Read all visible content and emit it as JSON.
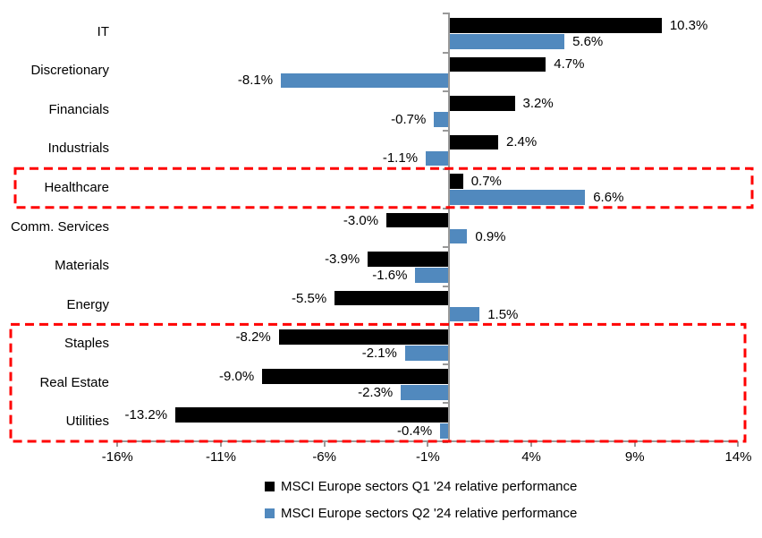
{
  "chart_data": {
    "type": "bar",
    "orientation": "horizontal",
    "title": "",
    "categories": [
      "IT",
      "Discretionary",
      "Financials",
      "Industrials",
      "Healthcare",
      "Comm. Services",
      "Materials",
      "Energy",
      "Staples",
      "Real Estate",
      "Utilities"
    ],
    "series": [
      {
        "name": "MSCI Europe sectors Q1 '24 relative performance",
        "color": "#000000",
        "values": [
          10.3,
          4.7,
          3.2,
          2.4,
          0.7,
          -3.0,
          -3.9,
          -5.5,
          -8.2,
          -9.0,
          -13.2
        ],
        "labels": [
          "10.3%",
          "4.7%",
          "3.2%",
          "2.4%",
          "0.7%",
          "-3.0%",
          "-3.9%",
          "-5.5%",
          "-8.2%",
          "-9.0%",
          "-13.2%"
        ]
      },
      {
        "name": "MSCI Europe sectors Q2 '24 relative performance",
        "color": "#5189BE",
        "values": [
          5.6,
          -8.1,
          -0.7,
          -1.1,
          6.6,
          0.9,
          -1.6,
          1.5,
          -2.1,
          -2.3,
          -0.4
        ],
        "labels": [
          "5.6%",
          "-8.1%",
          "-0.7%",
          "-1.1%",
          "6.6%",
          "0.9%",
          "-1.6%",
          "1.5%",
          "-2.1%",
          "-2.3%",
          "-0.4%"
        ]
      }
    ],
    "x_axis": {
      "min": -16,
      "max": 14,
      "unit": "%",
      "tick_values": [
        -16,
        -11,
        -6,
        -1,
        4,
        9,
        14
      ],
      "tick_labels": [
        "-16%",
        "-11%",
        "-6%",
        "-1%",
        "4%",
        "9%",
        "14%"
      ]
    },
    "legend_position": "bottom",
    "grid": false,
    "annotations": {
      "highlight_color": "#FF0000",
      "highlight_boxes": [
        {
          "name": "healthcare-highlight",
          "categories": [
            "Healthcare"
          ],
          "style": "red-dashed"
        },
        {
          "name": "staples-realestate-utilities-highlight",
          "categories": [
            "Staples",
            "Real Estate",
            "Utilities"
          ],
          "style": "red-dashed"
        }
      ]
    }
  },
  "colors": {
    "q1_bar": "#000000",
    "q2_bar": "#5189BE",
    "axis": "#999999",
    "highlight": "#FF0000",
    "text": "#000000",
    "background": "#FFFFFF"
  }
}
